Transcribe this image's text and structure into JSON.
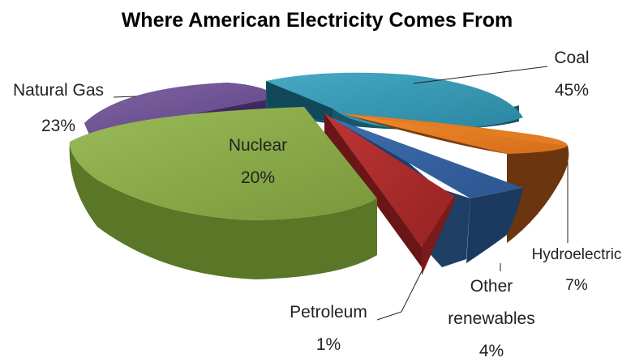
{
  "chart_data": {
    "type": "pie",
    "title": "Where American Electricity Comes From",
    "slices": [
      {
        "name": "Coal",
        "value": 45,
        "label": "45%",
        "color": "#2E8FA8"
      },
      {
        "name": "Hydroelectric",
        "value": 7,
        "label": "7%",
        "color": "#D9731E"
      },
      {
        "name": "Other renewables",
        "value": 4,
        "label": "4%",
        "color": "#2F5C94"
      },
      {
        "name": "Petroleum",
        "value": 1,
        "label": "1%",
        "color": "#A82A2A"
      },
      {
        "name": "Nuclear",
        "value": 20,
        "label": "20%",
        "color": "#7E9E3A"
      },
      {
        "name": "Natural Gas",
        "value": 23,
        "label": "23%",
        "color": "#6A4A96"
      }
    ],
    "legend": "none",
    "style": "3d-exploded"
  }
}
